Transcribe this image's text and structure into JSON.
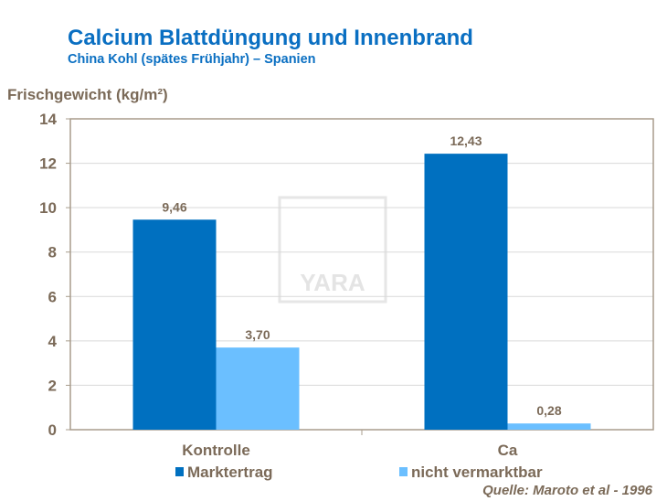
{
  "chart_data": {
    "type": "bar",
    "title": "Calcium Blattdüngung und Innenbrand",
    "subtitle": "China Kohl (spätes Frühjahr) – Spanien",
    "ylabel": "Frischgewicht (kg/m²)",
    "xlabel": "",
    "ylim": [
      0,
      14
    ],
    "yticks": [
      0,
      2,
      4,
      6,
      8,
      10,
      12,
      14
    ],
    "categories": [
      "Kontrolle",
      "Ca"
    ],
    "series": [
      {
        "name": "Marktertrag",
        "values": [
          9.46,
          12.43
        ],
        "labels": [
          "9,46",
          "12,43"
        ],
        "color": "#0070c0"
      },
      {
        "name": "nicht vermarktbar",
        "values": [
          3.7,
          0.28
        ],
        "labels": [
          "3,70",
          "0,28"
        ],
        "color": "#6bbfff"
      }
    ],
    "grid": true,
    "legend": "bottom",
    "source": "Quelle: Maroto et al - 1996",
    "watermark": "YARA"
  }
}
